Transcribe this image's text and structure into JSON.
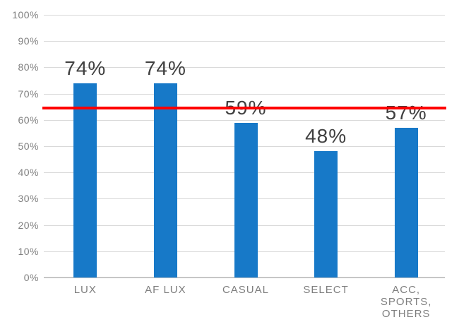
{
  "chart_data": {
    "type": "bar",
    "title": "",
    "xlabel": "",
    "ylabel": "",
    "categories": [
      "LUX",
      "AF LUX",
      "CASUAL",
      "SELECT",
      "ACC, SPORTS, OTHERS"
    ],
    "values": [
      74,
      74,
      59,
      48,
      57
    ],
    "data_labels": [
      "74%",
      "74%",
      "59%",
      "48%",
      "57%"
    ],
    "y_ticks": [
      0,
      10,
      20,
      30,
      40,
      50,
      60,
      70,
      80,
      90,
      100
    ],
    "y_tick_labels": [
      "0%",
      "10%",
      "20%",
      "30%",
      "40%",
      "50%",
      "60%",
      "70%",
      "80%",
      "90%",
      "100%"
    ],
    "ylim": [
      0,
      100
    ],
    "grid": true,
    "legend_position": "none",
    "reference_line": {
      "value": 64.5,
      "color": "#ff0000"
    },
    "colors": {
      "bar": "#1779c8",
      "gridline": "#d9d9d9",
      "axis_line": "#c6c6c6",
      "axis_text": "#7f7f7f",
      "data_label_text": "#404040"
    }
  }
}
